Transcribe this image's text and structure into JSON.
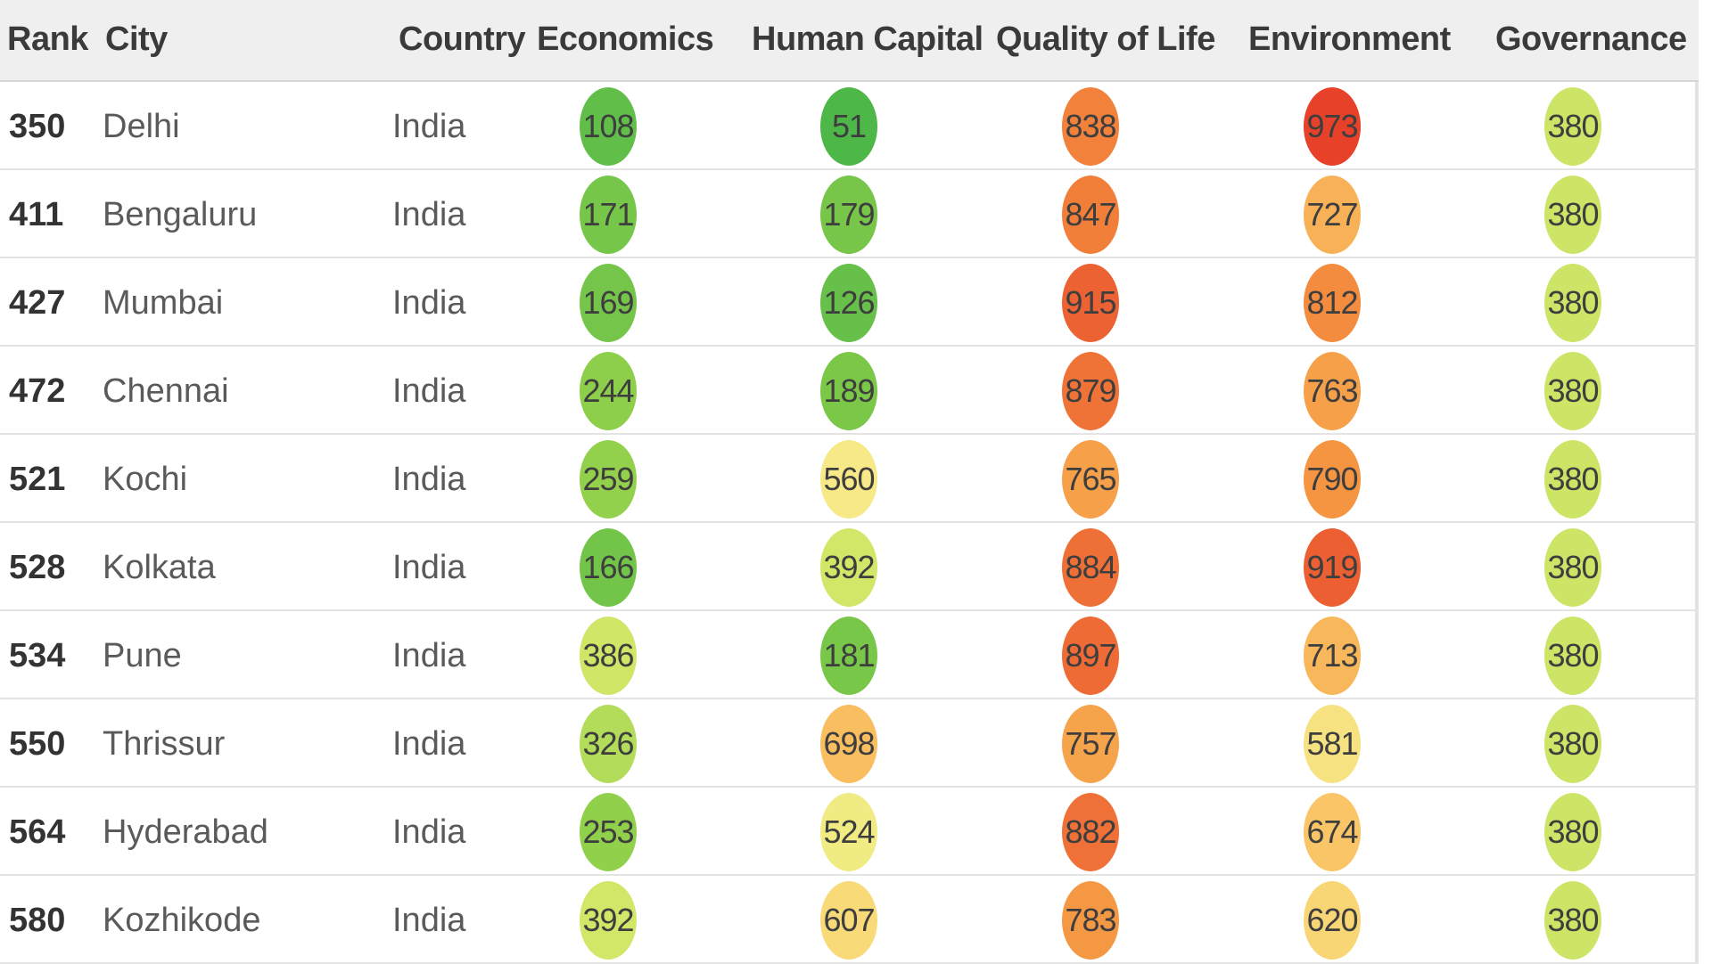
{
  "chart_data": {
    "type": "table",
    "columns": [
      "Rank",
      "City",
      "Country",
      "Economics",
      "Human Capital",
      "Quality of Life",
      "Environment",
      "Governance"
    ],
    "rows": [
      {
        "rank": "350",
        "city": "Delhi",
        "country": "India",
        "scores": [
          108,
          51,
          838,
          973,
          380
        ]
      },
      {
        "rank": "411",
        "city": "Bengaluru",
        "country": "India",
        "scores": [
          171,
          179,
          847,
          727,
          380
        ]
      },
      {
        "rank": "427",
        "city": "Mumbai",
        "country": "India",
        "scores": [
          169,
          126,
          915,
          812,
          380
        ]
      },
      {
        "rank": "472",
        "city": "Chennai",
        "country": "India",
        "scores": [
          244,
          189,
          879,
          763,
          380
        ]
      },
      {
        "rank": "521",
        "city": "Kochi",
        "country": "India",
        "scores": [
          259,
          560,
          765,
          790,
          380
        ]
      },
      {
        "rank": "528",
        "city": "Kolkata",
        "country": "India",
        "scores": [
          166,
          392,
          884,
          919,
          380
        ]
      },
      {
        "rank": "534",
        "city": "Pune",
        "country": "India",
        "scores": [
          386,
          181,
          897,
          713,
          380
        ]
      },
      {
        "rank": "550",
        "city": "Thrissur",
        "country": "India",
        "scores": [
          326,
          698,
          757,
          581,
          380
        ]
      },
      {
        "rank": "564",
        "city": "Hyderabad",
        "country": "India",
        "scores": [
          253,
          524,
          882,
          674,
          380
        ]
      },
      {
        "rank": "580",
        "city": "Kozhikode",
        "country": "India",
        "scores": [
          392,
          607,
          783,
          620,
          380
        ]
      }
    ],
    "color_scale": {
      "stops": [
        {
          "value": 50,
          "color": "#4db748"
        },
        {
          "value": 250,
          "color": "#8fcf4a"
        },
        {
          "value": 400,
          "color": "#d6e86a"
        },
        {
          "value": 550,
          "color": "#f7ec8a"
        },
        {
          "value": 700,
          "color": "#f9bd5e"
        },
        {
          "value": 800,
          "color": "#f4913f"
        },
        {
          "value": 900,
          "color": "#ee6a35"
        },
        {
          "value": 975,
          "color": "#e8402a"
        }
      ]
    }
  }
}
